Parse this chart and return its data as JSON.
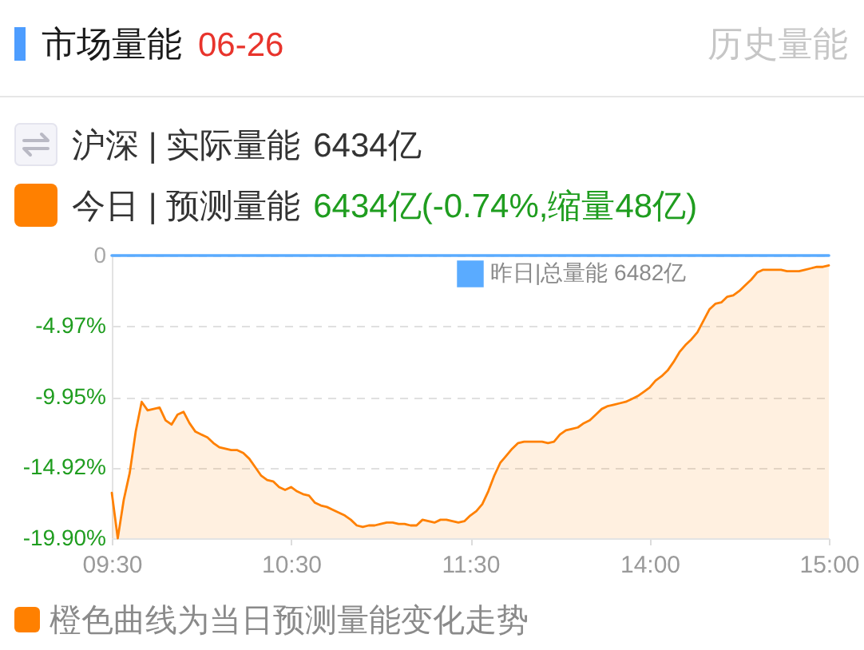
{
  "chart_data": {
    "type": "line",
    "title": "市场量能",
    "subtitle": "06-26",
    "annotations": [
      "历史量能",
      "沪深 | 实际量能",
      "6434亿",
      "今日 | 预测量能",
      "6434亿(-0.74%,缩量48亿)",
      "橙色曲线为当日预测量能变化走势"
    ],
    "categories": [
      "09:30",
      null,
      null,
      null,
      null,
      null,
      null,
      null,
      null,
      null,
      null,
      null,
      null,
      null,
      null,
      null,
      null,
      null,
      null,
      null,
      null,
      null,
      null,
      null,
      null,
      null,
      null,
      null,
      null,
      null,
      "10:30",
      null,
      null,
      null,
      null,
      null,
      null,
      null,
      null,
      null,
      null,
      null,
      null,
      null,
      null,
      null,
      null,
      null,
      null,
      null,
      null,
      null,
      null,
      null,
      null,
      null,
      null,
      null,
      null,
      null,
      "11:30",
      null,
      null,
      null,
      null,
      null,
      null,
      null,
      null,
      null,
      null,
      null,
      null,
      null,
      null,
      null,
      null,
      null,
      null,
      null,
      null,
      null,
      null,
      null,
      null,
      null,
      null,
      null,
      null,
      null,
      "14:00",
      null,
      null,
      null,
      null,
      null,
      null,
      null,
      null,
      null,
      null,
      null,
      null,
      null,
      null,
      null,
      null,
      null,
      null,
      null,
      null,
      null,
      null,
      null,
      null,
      null,
      null,
      null,
      null,
      null,
      "15:00"
    ],
    "ylim": [
      -19.9,
      0
    ],
    "yticks": [
      0,
      {
        "value": -4.97,
        "label": "-4.97%"
      },
      {
        "value": -9.95,
        "label": "-9.95%"
      },
      {
        "value": -14.92,
        "label": "-14.92%"
      },
      {
        "value": -19.9,
        "label": "-19.90%"
      }
    ],
    "grid": "y",
    "legend": "top right",
    "series": [
      {
        "type": "line",
        "name": "昨日|总量能 6482亿",
        "color": "#5aabff",
        "values": [
          0,
          0,
          0,
          0,
          0,
          0,
          0,
          0,
          0,
          0,
          0,
          0,
          0,
          0,
          0,
          0,
          0,
          0,
          0,
          0,
          0,
          0,
          0,
          0,
          0,
          0,
          0,
          0,
          0,
          0,
          0,
          0,
          0,
          0,
          0,
          0,
          0,
          0,
          0,
          0,
          0,
          0,
          0,
          0,
          0,
          0,
          0,
          0,
          0,
          0,
          0,
          0,
          0,
          0,
          0,
          0,
          0,
          0,
          0,
          0,
          0,
          0,
          0,
          0,
          0,
          0,
          0,
          0,
          0,
          0,
          0,
          0,
          0,
          0,
          0,
          0,
          0,
          0,
          0,
          0,
          0,
          0,
          0,
          0,
          0,
          0,
          0,
          0,
          0,
          0,
          0,
          0,
          0,
          0,
          0,
          0,
          0,
          0,
          0,
          0,
          0,
          0,
          0,
          0,
          0,
          0,
          0,
          0,
          0,
          0,
          0,
          0,
          0,
          0,
          0,
          0,
          0,
          0,
          0,
          0,
          0
        ]
      },
      {
        "color": "#ff8000",
        "values": [
          -16.7,
          -19.9,
          -17.2,
          -15.3,
          -12.4,
          -10.3,
          -10.9,
          -10.8,
          -10.7,
          -11.6,
          -11.9,
          -11.2,
          -11.0,
          -11.8,
          -12.4,
          -12.6,
          -12.8,
          -13.2,
          -13.5,
          -13.6,
          -13.7,
          -13.7,
          -13.9,
          -14.3,
          -14.9,
          -15.5,
          -15.8,
          -15.9,
          -16.3,
          -16.5,
          -16.3,
          -16.6,
          -16.8,
          -16.9,
          -17.4,
          -17.6,
          -17.7,
          -17.9,
          -18.1,
          -18.3,
          -18.6,
          -19.0,
          -19.1,
          -19.0,
          -19.0,
          -18.9,
          -18.8,
          -18.8,
          -18.9,
          -18.9,
          -19.0,
          -19.0,
          -18.6,
          -18.7,
          -18.8,
          -18.6,
          -18.6,
          -18.7,
          -18.8,
          -18.7,
          -18.3,
          -18.0,
          -17.5,
          -16.6,
          -15.5,
          -14.6,
          -14.1,
          -13.6,
          -13.2,
          -13.1,
          -13.1,
          -13.1,
          -13.1,
          -13.2,
          -13.1,
          -12.6,
          -12.3,
          -12.2,
          -12.1,
          -11.8,
          -11.6,
          -11.2,
          -10.8,
          -10.6,
          -10.5,
          -10.4,
          -10.3,
          -10.1,
          -9.9,
          -9.6,
          -9.3,
          -8.8,
          -8.5,
          -8.1,
          -7.5,
          -6.8,
          -6.3,
          -5.9,
          -5.4,
          -4.6,
          -3.8,
          -3.4,
          -3.3,
          -2.9,
          -2.8,
          -2.5,
          -2.1,
          -1.7,
          -1.2,
          -1.0,
          -1.0,
          -1.0,
          -1.0,
          -1.1,
          -1.1,
          -1.1,
          -1.0,
          -0.9,
          -0.8,
          -0.8,
          -0.7
        ],
        "lower": [
          -19.9,
          -19.9,
          -19.9,
          -19.9,
          -19.9,
          -19.9,
          -19.9,
          -19.9,
          -19.9,
          -19.9,
          -19.9,
          -19.9,
          -19.9,
          -19.9,
          -19.9,
          -19.9,
          -19.9,
          -19.9,
          -19.9,
          -19.9,
          -19.9,
          -19.9,
          -19.9,
          -19.9,
          -19.9,
          -19.9,
          -19.9,
          -19.9,
          -19.9,
          -19.9,
          -19.9,
          -19.9,
          -19.9,
          -19.9,
          -19.9,
          -19.9,
          -19.9,
          -19.9,
          -19.9,
          -19.9,
          -19.9,
          -19.9,
          -19.9,
          -19.9,
          -19.9,
          -19.9,
          -19.9,
          -19.9,
          -19.9,
          -19.9,
          -19.9,
          -19.9,
          -19.9,
          -19.9,
          -19.9,
          -19.9,
          -19.9,
          -19.9,
          -19.9,
          -19.9,
          -19.9,
          -19.9,
          -19.9,
          -19.9,
          -19.9,
          -19.9,
          -19.9,
          -19.9,
          -19.9,
          -19.9,
          -19.9,
          -19.9,
          -19.9,
          -19.9,
          -19.9,
          -19.9,
          -19.9,
          -19.9,
          -19.9,
          -19.9,
          -19.9,
          -19.9,
          -19.9,
          -19.9,
          -19.9,
          -19.9,
          -19.9,
          -19.9,
          -19.9,
          -19.9,
          -19.9,
          -19.9,
          -19.9,
          -19.9,
          -19.9,
          -19.9,
          -19.9,
          -19.9,
          -19.9,
          -19.9,
          -19.9,
          -19.9,
          -19.9,
          -19.9,
          -19.9,
          -19.9,
          -19.9,
          -19.9,
          -19.9,
          -19.9,
          -19.9,
          -19.9,
          -19.9,
          -19.9,
          -19.9,
          -19.9,
          -19.9,
          -19.9,
          -19.9,
          -19.9,
          -19.9
        ],
        "upper": [
          -16.7,
          -19.9,
          -17.2,
          -15.3,
          -12.4,
          -10.3,
          -10.9,
          -10.8,
          -10.7,
          -11.6,
          -11.9,
          -11.2,
          -11.0,
          -11.8,
          -12.4,
          -12.6,
          -12.8,
          -13.2,
          -13.5,
          -13.6,
          -13.7,
          -13.7,
          -13.9,
          -14.3,
          -14.9,
          -15.5,
          -15.8,
          -15.9,
          -16.3,
          -16.5,
          -16.3,
          -16.6,
          -16.8,
          -16.9,
          -17.4,
          -17.6,
          -17.7,
          -17.9,
          -18.1,
          -18.3,
          -18.6,
          -19.0,
          -19.1,
          -19.0,
          -19.0,
          -18.9,
          -18.8,
          -18.8,
          -18.9,
          -18.9,
          -19.0,
          -19.0,
          -18.6,
          -18.7,
          -18.8,
          -18.6,
          -18.6,
          -18.7,
          -18.8,
          -18.7,
          -18.3,
          -18.0,
          -17.5,
          -16.6,
          -15.5,
          -14.6,
          -14.1,
          -13.6,
          -13.2,
          -13.1,
          -13.1,
          -13.1,
          -13.1,
          -13.2,
          -13.1,
          -12.6,
          -12.3,
          -12.2,
          -12.1,
          -11.8,
          -11.6,
          -11.2,
          -10.8,
          -10.6,
          -10.5,
          -10.4,
          -10.3,
          -10.1,
          -9.9,
          -9.6,
          -9.3,
          -8.8,
          -8.5,
          -8.1,
          -7.5,
          -6.8,
          -6.3,
          -5.9,
          -5.4,
          -4.6,
          -3.8,
          -3.4,
          -3.3,
          -2.9,
          -2.8,
          -2.5,
          -2.1,
          -1.7,
          -1.2,
          -1.0,
          -1.0,
          -1.0,
          -1.0,
          -1.1,
          -1.1,
          -1.1,
          -1.0,
          -0.9,
          -0.8,
          -0.8,
          -0.7
        ]
      }
    ]
  }
}
